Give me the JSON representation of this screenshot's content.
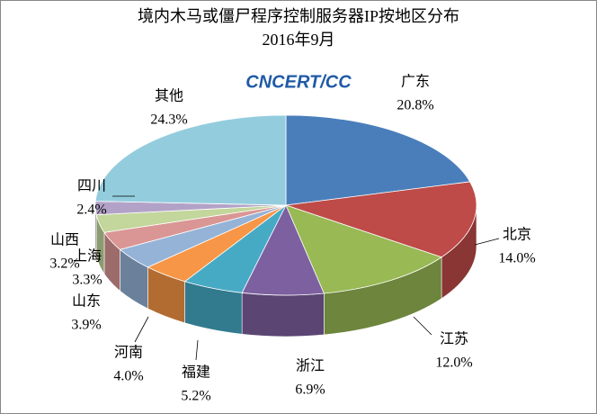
{
  "chart_data": {
    "type": "pie3d",
    "title": "境内木马或僵尸程序控制服务器IP按地区分布",
    "subtitle": "2016年9月",
    "logo": "CNCERT/CC",
    "categories": [
      "广东",
      "北京",
      "江苏",
      "浙江",
      "福建",
      "河南",
      "山东",
      "上海",
      "山西",
      "四川",
      "其他"
    ],
    "values": [
      20.8,
      14.0,
      12.0,
      6.9,
      5.2,
      4.0,
      3.9,
      3.3,
      3.2,
      2.4,
      24.3
    ],
    "value_labels": [
      "20.8%",
      "14.0%",
      "12.0%",
      "6.9%",
      "5.2%",
      "4.0%",
      "3.9%",
      "3.3%",
      "3.2%",
      "2.4%",
      "24.3%"
    ],
    "colors": [
      "#4a7ebb",
      "#be4b48",
      "#98b954",
      "#7d60a0",
      "#46aac5",
      "#f79646",
      "#95b3d7",
      "#d99694",
      "#c3d69b",
      "#b3a2c7",
      "#93cddd"
    ]
  }
}
